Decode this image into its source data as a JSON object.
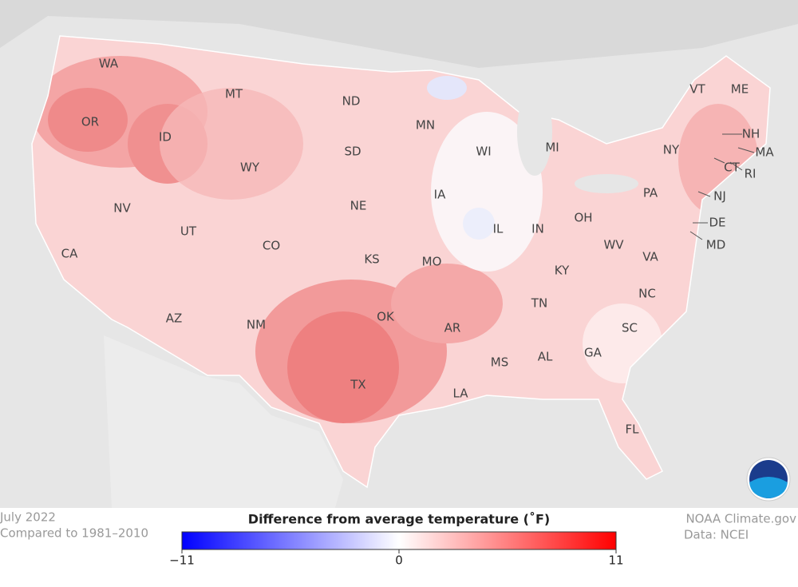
{
  "states": [
    "WA",
    "MT",
    "ND",
    "MN",
    "VT",
    "ME",
    "OR",
    "ID",
    "SD",
    "WI",
    "MI",
    "NH",
    "NY",
    "MA",
    "WY",
    "IA",
    "PA",
    "CT",
    "RI",
    "NJ",
    "NV",
    "NE",
    "UT",
    "CO",
    "IL",
    "IN",
    "OH",
    "DE",
    "WV",
    "MD",
    "KS",
    "MO",
    "KY",
    "VA",
    "CA",
    "AZ",
    "NM",
    "OK",
    "AR",
    "TN",
    "NC",
    "SC",
    "MS",
    "AL",
    "GA",
    "TX",
    "LA",
    "FL"
  ],
  "footer": {
    "date": "July 2022",
    "baseline": "Compared to 1981–2010",
    "source": "NOAA Climate.gov",
    "data": "Data: NCEI"
  },
  "legend": {
    "title": "Difference from average temperature (˚F)",
    "lim": [
      -11,
      11
    ],
    "ticks": [
      {
        "value": -11,
        "label": "−11"
      },
      0,
      11
    ]
  }
}
